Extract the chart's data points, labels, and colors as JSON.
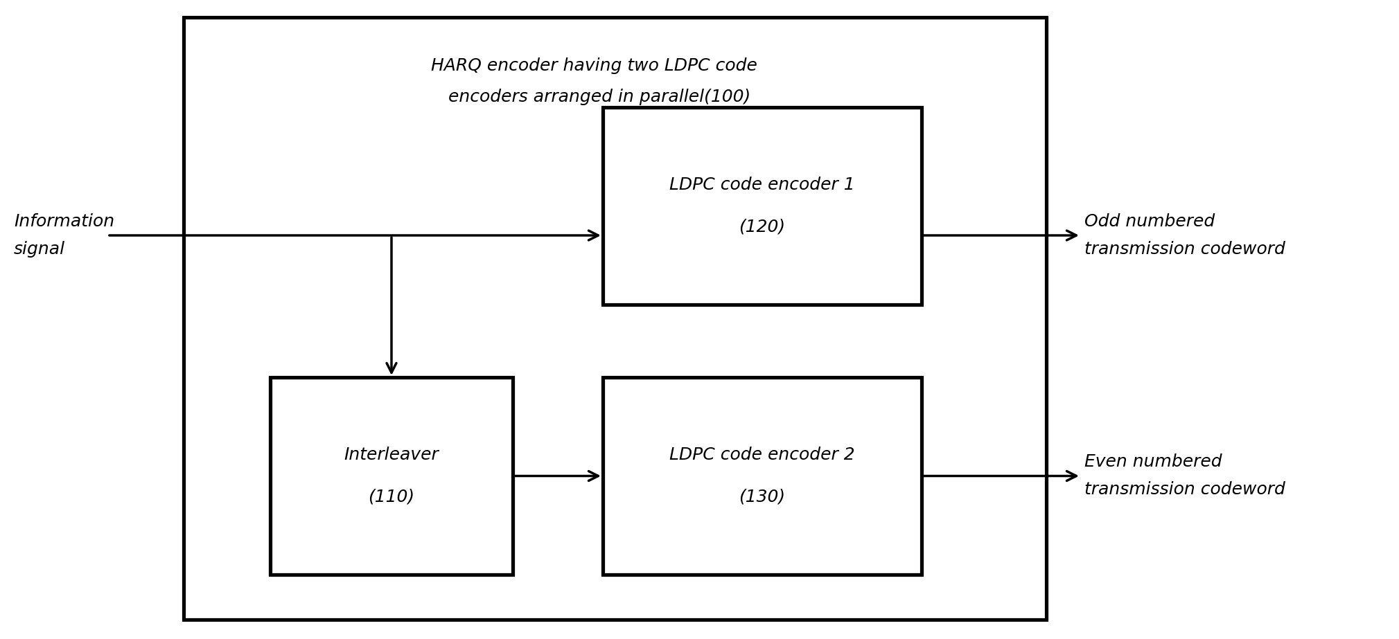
{
  "fig_width": 20.19,
  "fig_height": 9.23,
  "bg_color": "#ffffff",
  "outer_box_label_line1": "HARQ encoder having two LDPC code",
  "outer_box_label_line2": "  encoders arranged in parallel(100)",
  "encoder1_label_line1": "LDPC code encoder 1",
  "encoder1_label_line2": "(120)",
  "encoder2_label_line1": "LDPC code encoder 2",
  "encoder2_label_line2": "(130)",
  "interleaver_label_line1": "Interleaver",
  "interleaver_label_line2": "(110)",
  "info_signal_label_line1": "Information",
  "info_signal_label_line2": "signal",
  "odd_label_line1": "Odd numbered",
  "odd_label_line2": "transmission codeword",
  "even_label_line1": "Even numbered",
  "even_label_line2": "transmission codeword",
  "font_size_box_label": 18,
  "font_size_outer_label": 18,
  "font_size_io_label": 18,
  "line_color": "#000000",
  "line_width": 2.5
}
